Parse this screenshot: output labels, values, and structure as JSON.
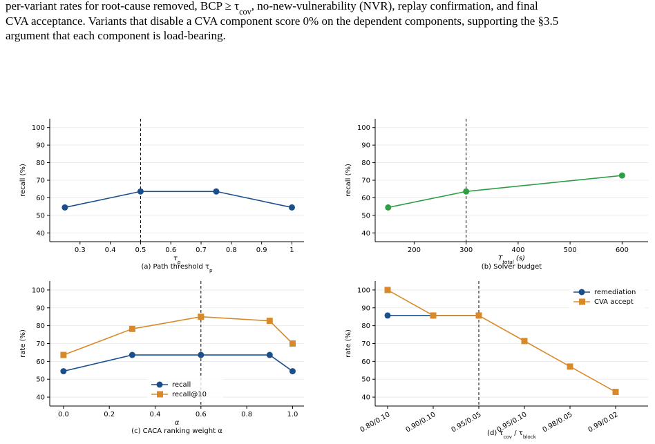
{
  "caption": [
    [
      "per-variant rates for root-cause removed, BCP ≥ τ",
      {
        "sub": "cov"
      },
      ", no-new-vulnerability (NVR), replay confirmation, and final"
    ],
    [
      "CVA acceptance. Variants that disable a CVA component score 0% on the dependent components, supporting the §3.5"
    ],
    [
      "argument that each component is load-bearing."
    ]
  ],
  "chart_data": [
    {
      "type": "line",
      "title": [
        "(a) Path threshold τ",
        {
          "sub": "p"
        }
      ],
      "xlabel": [
        "τ",
        {
          "sub": "p"
        }
      ],
      "ylabel": "recall (%)",
      "x": [
        0.25,
        0.5,
        0.75,
        1.0
      ],
      "series": [
        {
          "name": "recall",
          "color": "#1b4f8c",
          "marker": "circle",
          "values": [
            54.5,
            63.6,
            63.6,
            54.5
          ]
        }
      ],
      "xlim": [
        0.2,
        1.04
      ],
      "xticks": [
        0.3,
        0.4,
        0.5,
        0.6,
        0.7,
        0.8,
        0.9,
        1.0
      ],
      "ylim": [
        35,
        105
      ],
      "yticks": [
        40,
        50,
        60,
        70,
        80,
        90,
        100
      ],
      "grid": true,
      "vline": 0.5
    },
    {
      "type": "line",
      "title": [
        "(b) Solver budget"
      ],
      "xlabel": [
        "T",
        {
          "sub": "total"
        },
        " (s)"
      ],
      "ylabel": "recall (%)",
      "x": [
        150,
        300,
        600
      ],
      "series": [
        {
          "name": "recall",
          "color": "#2e9e44",
          "marker": "circle",
          "values": [
            54.5,
            63.6,
            72.7
          ]
        }
      ],
      "xlim": [
        125,
        650
      ],
      "xticks": [
        200,
        300,
        400,
        500,
        600
      ],
      "ylim": [
        35,
        105
      ],
      "yticks": [
        40,
        50,
        60,
        70,
        80,
        90,
        100
      ],
      "grid": true,
      "vline": 300
    },
    {
      "type": "line",
      "title": [
        "(c) CACA ranking weight α"
      ],
      "xlabel": [
        "α"
      ],
      "ylabel": "rate (%)",
      "x": [
        0.0,
        0.3,
        0.6,
        0.9,
        1.0
      ],
      "series": [
        {
          "name": "recall",
          "color": "#1b4f8c",
          "marker": "circle",
          "values": [
            54.5,
            63.6,
            63.6,
            63.6,
            54.5
          ]
        },
        {
          "name": "recall@10",
          "color": "#d88a2b",
          "marker": "square",
          "values": [
            63.6,
            78.2,
            85.0,
            82.7,
            70.0
          ]
        }
      ],
      "xlim": [
        -0.06,
        1.05
      ],
      "xticks": [
        {
          "value": 0,
          "label": "0.0"
        },
        0.2,
        0.4,
        0.6,
        0.8,
        {
          "value": 1,
          "label": "1.0"
        }
      ],
      "ylim": [
        35,
        105
      ],
      "yticks": [
        40,
        50,
        60,
        70,
        80,
        90,
        100
      ],
      "grid": true,
      "vline": 0.6,
      "legend": "lower-center"
    },
    {
      "type": "line",
      "title": [
        "(d) τ",
        {
          "sub": "cov"
        },
        " / τ",
        {
          "sub": "block"
        }
      ],
      "ylabel": "rate (%)",
      "categories": [
        "0.80/0.10",
        "0.90/0.10",
        "0.95/0.05",
        "0.95/0.10",
        "0.98/0.05",
        "0.99/0.02"
      ],
      "series": [
        {
          "name": "remediation",
          "color": "#1b4f8c",
          "marker": "circle",
          "values": [
            85.7,
            85.7,
            85.7,
            null,
            null,
            null
          ]
        },
        {
          "name": "CVA accept",
          "color": "#d88a2b",
          "marker": "square",
          "values": [
            100,
            85.7,
            85.7,
            71.4,
            57.1,
            42.9
          ]
        }
      ],
      "ylim": [
        35,
        105
      ],
      "yticks": [
        40,
        50,
        60,
        70,
        80,
        90,
        100
      ],
      "grid": true,
      "vline": "0.95/0.05",
      "legend": "upper-right"
    }
  ]
}
